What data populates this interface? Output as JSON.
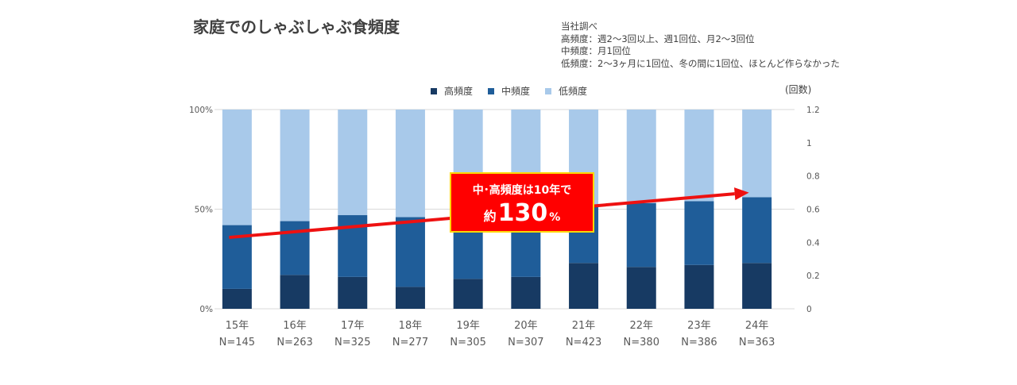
{
  "title": "家庭でのしゃぶしゃぶ食頻度",
  "notes": [
    "当社調べ",
    "高頻度：週2～3回以上、週1回位、月2～3回位",
    "中頻度：月1回位",
    "低頻度：2～3ヶ月に1回位、冬の間に1回位、ほとんど作らなかった"
  ],
  "callout": {
    "line1": "中･高頻度は10年で",
    "prefix": "約",
    "number": "130",
    "unit": "%"
  },
  "colors": {
    "high": "#173a63",
    "mid": "#1f5d99",
    "low": "#a8c9ea",
    "arrow": "#ee1111"
  },
  "chart_data": {
    "type": "bar",
    "stacked": true,
    "categories": [
      "15年",
      "16年",
      "17年",
      "18年",
      "19年",
      "20年",
      "21年",
      "22年",
      "23年",
      "24年"
    ],
    "sample_sizes": [
      "N=145",
      "N=263",
      "N=325",
      "N=277",
      "N=305",
      "N=307",
      "N=423",
      "N=380",
      "N=386",
      "N=363"
    ],
    "series": [
      {
        "name": "高頻度",
        "values": [
          10,
          17,
          16,
          11,
          15,
          16,
          23,
          21,
          22,
          23
        ]
      },
      {
        "name": "中頻度",
        "values": [
          32,
          27,
          31,
          35,
          28,
          26,
          28,
          32,
          32,
          33
        ]
      },
      {
        "name": "低頻度",
        "values": [
          58,
          56,
          53,
          54,
          57,
          58,
          49,
          47,
          46,
          44
        ]
      }
    ],
    "y_left": {
      "ticks": [
        "0%",
        "50%",
        "100%"
      ],
      "range": [
        0,
        100
      ]
    },
    "y_right": {
      "label": "(回数)",
      "ticks": [
        "0",
        "0.2",
        "0.4",
        "0.6",
        "0.8",
        "1",
        "1.2"
      ],
      "range": [
        0,
        1.2
      ]
    },
    "trend_arrow": {
      "from": {
        "category": "15年",
        "value": 0.43
      },
      "to": {
        "category": "24年",
        "value": 0.7
      }
    },
    "legend_position": "top-center",
    "grid": true
  }
}
